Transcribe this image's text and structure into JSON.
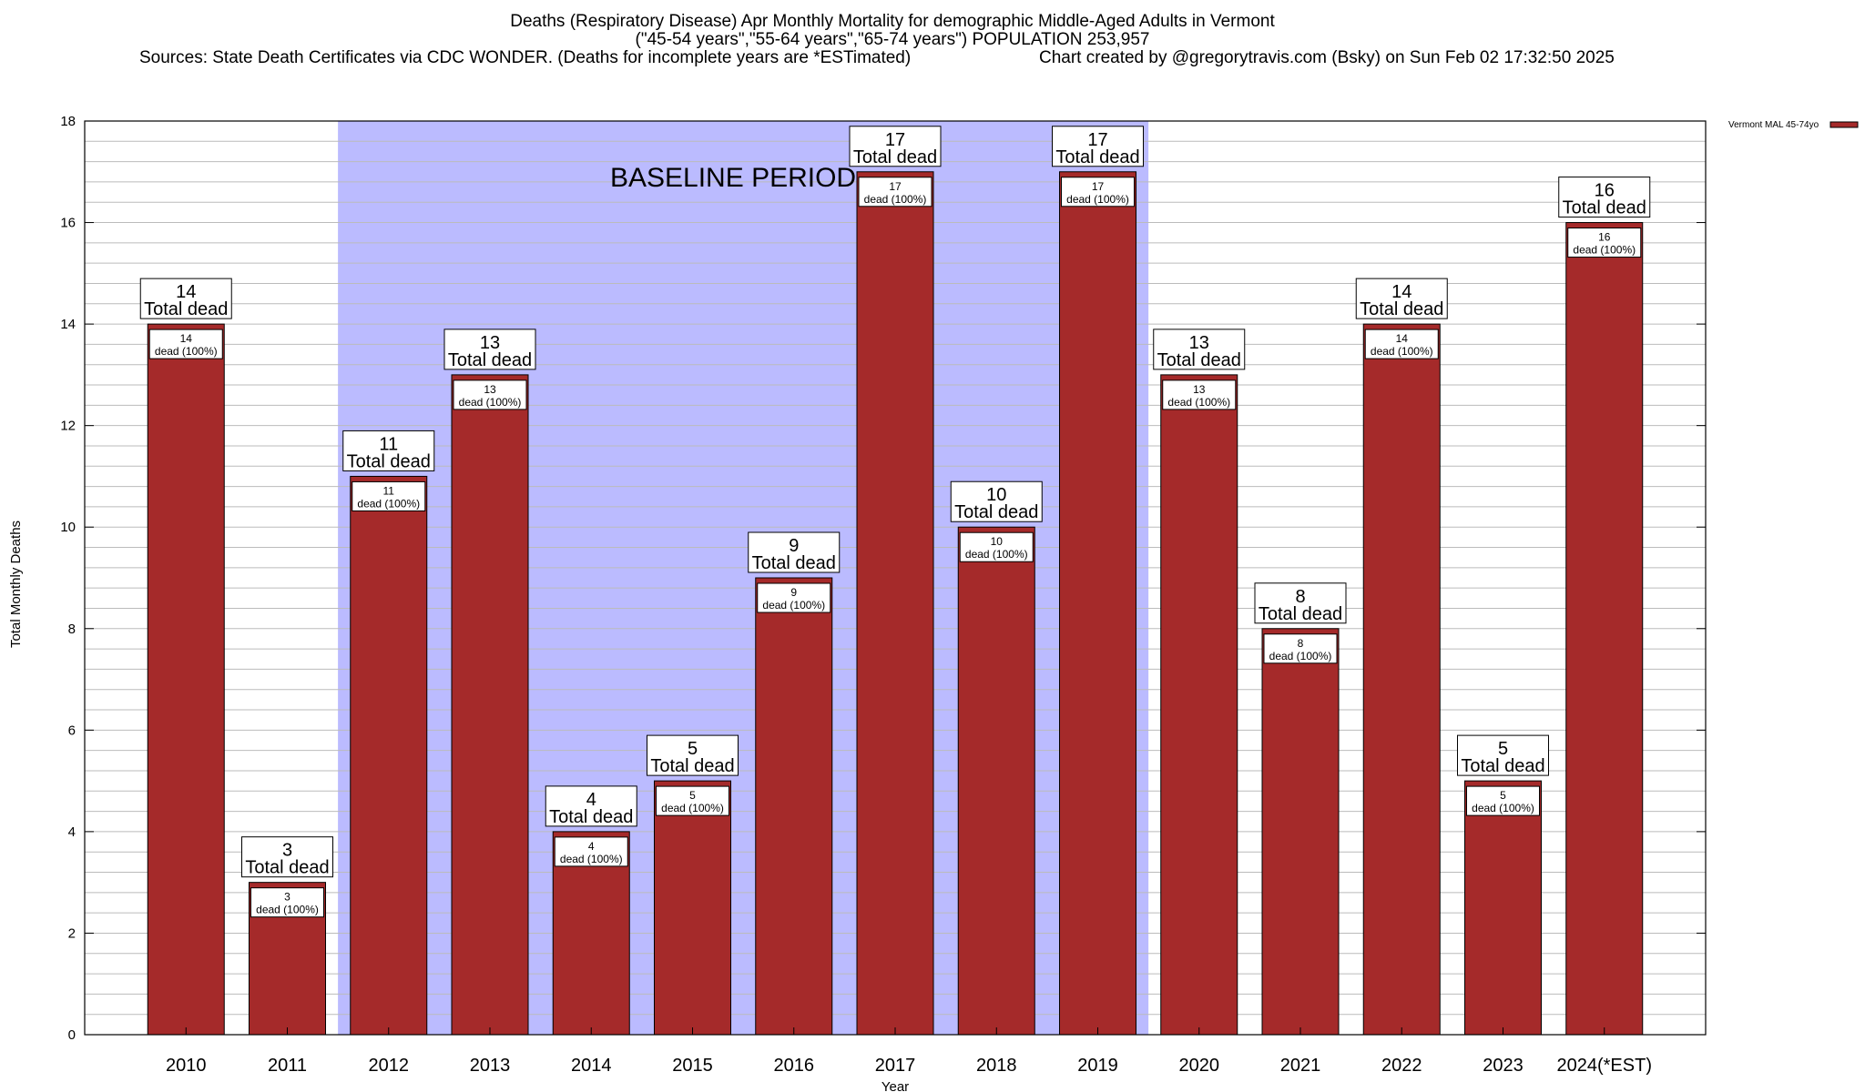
{
  "title": {
    "line1": "Deaths (Respiratory Disease) Apr Monthly Mortality for demographic Middle-Aged Adults in Vermont",
    "line2": "(\"45-54 years\",\"55-64 years\",\"65-74 years\") POPULATION 253,957",
    "line3_left": "Sources: State Death Certificates via CDC WONDER. (Deaths for incomplete years are *ESTimated)",
    "line3_right": "Chart created by @gregorytravis.com (Bsky) on Sun Feb 02 17:32:50 2025"
  },
  "chart_data": {
    "type": "bar",
    "title": "Deaths (Respiratory Disease) Apr Monthly Mortality for demographic Middle-Aged Adults in Vermont",
    "xlabel": "Year",
    "ylabel": "Total Monthly Deaths",
    "ylim": [
      0,
      18
    ],
    "yticks": [
      0,
      2,
      4,
      6,
      8,
      10,
      12,
      14,
      16,
      18
    ],
    "minor_grid_step": 0.4,
    "categories": [
      "2010",
      "2011",
      "2012",
      "2013",
      "2014",
      "2015",
      "2016",
      "2017",
      "2018",
      "2019",
      "2020",
      "2021",
      "2022",
      "2023",
      "2024(*EST)"
    ],
    "series": [
      {
        "name": "Vermont MAL 45-74yo",
        "color": "#a52a2a",
        "values": [
          14,
          3,
          11,
          13,
          4,
          5,
          9,
          17,
          10,
          17,
          13,
          8,
          14,
          5,
          16
        ]
      }
    ],
    "top_label_suffix": "Total dead",
    "inner_label_suffix": "dead (100%)",
    "baseline": {
      "label": "BASELINE PERIOD",
      "from": "2012",
      "to": "2019",
      "color": "#bbbbff"
    },
    "legend": {
      "position": "top-right",
      "label": "Vermont MAL 45-74yo"
    }
  }
}
